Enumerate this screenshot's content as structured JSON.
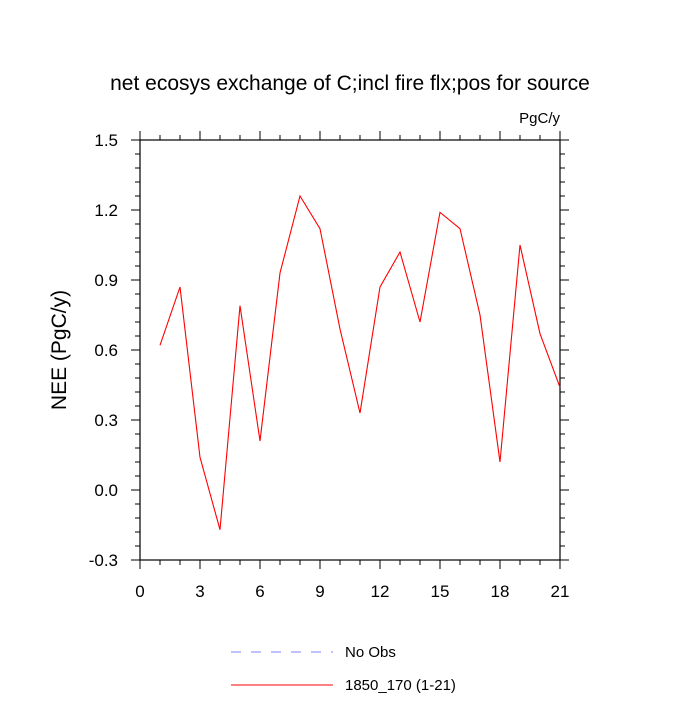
{
  "chart_data": {
    "type": "line",
    "title": "net ecosys exchange of C;incl fire flx;pos for source",
    "units_label": "PgC/y",
    "ylabel": "NEE  (PgC/y)",
    "xlabel": "",
    "xlim": [
      0,
      21
    ],
    "ylim": [
      -0.3,
      1.5
    ],
    "x_ticks": [
      0,
      3,
      6,
      9,
      12,
      15,
      18,
      21
    ],
    "x_tick_labels": [
      "0",
      "3",
      "6",
      "9",
      "12",
      "15",
      "18",
      "21"
    ],
    "y_ticks": [
      -0.3,
      0.0,
      0.3,
      0.6,
      0.9,
      1.2,
      1.5
    ],
    "y_tick_labels": [
      "-0.3",
      "0.0",
      "0.3",
      "0.6",
      "0.9",
      "1.2",
      "1.5"
    ],
    "grid": false,
    "legend_position": "bottom",
    "series": [
      {
        "name": "1850_170 (1-21)",
        "color": "#ff0000",
        "style": "solid",
        "x": [
          1,
          2,
          3,
          4,
          5,
          6,
          7,
          8,
          9,
          10,
          11,
          12,
          13,
          14,
          15,
          16,
          17,
          18,
          19,
          20,
          21
        ],
        "values": [
          0.62,
          0.87,
          0.14,
          -0.17,
          0.79,
          0.21,
          0.93,
          1.26,
          1.12,
          0.69,
          0.33,
          0.87,
          1.02,
          0.72,
          1.19,
          1.12,
          0.75,
          0.12,
          1.05,
          0.67,
          0.44
        ]
      }
    ],
    "legend": [
      {
        "label": "No Obs",
        "color": "#8080ff",
        "style": "dashed"
      },
      {
        "label": "1850_170 (1-21)",
        "color": "#ff0000",
        "style": "solid"
      }
    ]
  }
}
